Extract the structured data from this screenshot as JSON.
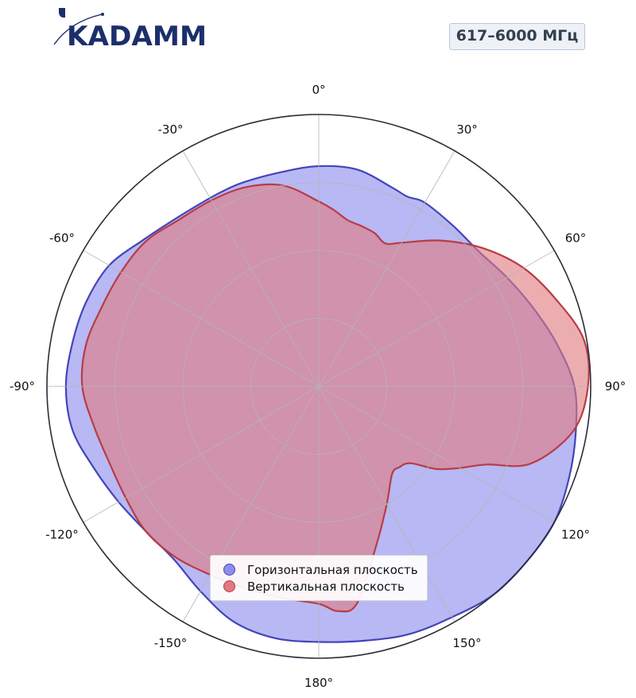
{
  "header": {
    "logo_text": "KADAMM",
    "frequency_badge": "617–6000 МГц"
  },
  "colors": {
    "horizontal_fill": "#8d8ded",
    "horizontal_stroke": "#4444bb",
    "vertical_fill": "#de7a80",
    "vertical_stroke": "#b83c44",
    "grid": "#b5b5b5",
    "outer_ring": "#2c2c3a",
    "logo": "#1b2f6b"
  },
  "chart_data": {
    "type": "polar-area",
    "angle_direction": "clockwise",
    "zero_at": "top",
    "angle_ticks": [
      0,
      30,
      60,
      90,
      120,
      150,
      180,
      -150,
      -120,
      -90,
      -60,
      -30
    ],
    "angle_tick_labels": [
      "0°",
      "30°",
      "60°",
      "90°",
      "120°",
      "150°",
      "180°",
      "-150°",
      "-120°",
      "-90°",
      "-60°",
      "-30°"
    ],
    "radial_range": [
      0,
      1
    ],
    "radial_grid": [
      0.25,
      0.5,
      0.75
    ],
    "tick_labels_shown": false,
    "legend_position": "bottom-center",
    "series": [
      {
        "name": "Горизонтальная плоскость",
        "color_key": "horizontal",
        "points": [
          [
            0,
            0.81
          ],
          [
            10,
            0.81
          ],
          [
            20,
            0.78
          ],
          [
            25,
            0.77
          ],
          [
            30,
            0.78
          ],
          [
            40,
            0.77
          ],
          [
            50,
            0.77
          ],
          [
            60,
            0.8
          ],
          [
            70,
            0.84
          ],
          [
            80,
            0.89
          ],
          [
            90,
            0.94
          ],
          [
            100,
            0.96
          ],
          [
            110,
            0.98
          ],
          [
            120,
            1.0
          ],
          [
            130,
            1.0
          ],
          [
            140,
            1.0
          ],
          [
            150,
            0.98
          ],
          [
            160,
            0.97
          ],
          [
            170,
            0.95
          ],
          [
            180,
            0.94
          ],
          [
            190,
            0.94
          ],
          [
            200,
            0.92
          ],
          [
            210,
            0.87
          ],
          [
            220,
            0.83
          ],
          [
            230,
            0.83
          ],
          [
            240,
            0.85
          ],
          [
            250,
            0.88
          ],
          [
            260,
            0.92
          ],
          [
            270,
            0.93
          ],
          [
            280,
            0.92
          ],
          [
            290,
            0.91
          ],
          [
            300,
            0.89
          ],
          [
            310,
            0.84
          ],
          [
            320,
            0.81
          ],
          [
            330,
            0.8
          ],
          [
            335,
            0.8
          ],
          [
            340,
            0.8
          ],
          [
            350,
            0.8
          ]
        ]
      },
      {
        "name": "Вертикальная плоскость",
        "color_key": "vertical",
        "points": [
          [
            0,
            0.68
          ],
          [
            5,
            0.65
          ],
          [
            10,
            0.62
          ],
          [
            15,
            0.61
          ],
          [
            20,
            0.6
          ],
          [
            25,
            0.58
          ],
          [
            30,
            0.61
          ],
          [
            40,
            0.7
          ],
          [
            50,
            0.79
          ],
          [
            60,
            0.87
          ],
          [
            70,
            0.93
          ],
          [
            80,
            0.99
          ],
          [
            90,
            0.99
          ],
          [
            100,
            0.95
          ],
          [
            110,
            0.83
          ],
          [
            115,
            0.68
          ],
          [
            120,
            0.6
          ],
          [
            125,
            0.53
          ],
          [
            130,
            0.44
          ],
          [
            135,
            0.42
          ],
          [
            140,
            0.42
          ],
          [
            150,
            0.5
          ],
          [
            160,
            0.62
          ],
          [
            170,
            0.81
          ],
          [
            175,
            0.83
          ],
          [
            180,
            0.8
          ],
          [
            190,
            0.79
          ],
          [
            200,
            0.79
          ],
          [
            210,
            0.8
          ],
          [
            220,
            0.82
          ],
          [
            230,
            0.83
          ],
          [
            240,
            0.82
          ],
          [
            250,
            0.82
          ],
          [
            260,
            0.84
          ],
          [
            270,
            0.87
          ],
          [
            280,
            0.87
          ],
          [
            290,
            0.85
          ],
          [
            300,
            0.84
          ],
          [
            310,
            0.83
          ],
          [
            320,
            0.8
          ],
          [
            330,
            0.79
          ],
          [
            340,
            0.78
          ],
          [
            350,
            0.75
          ]
        ]
      }
    ]
  }
}
